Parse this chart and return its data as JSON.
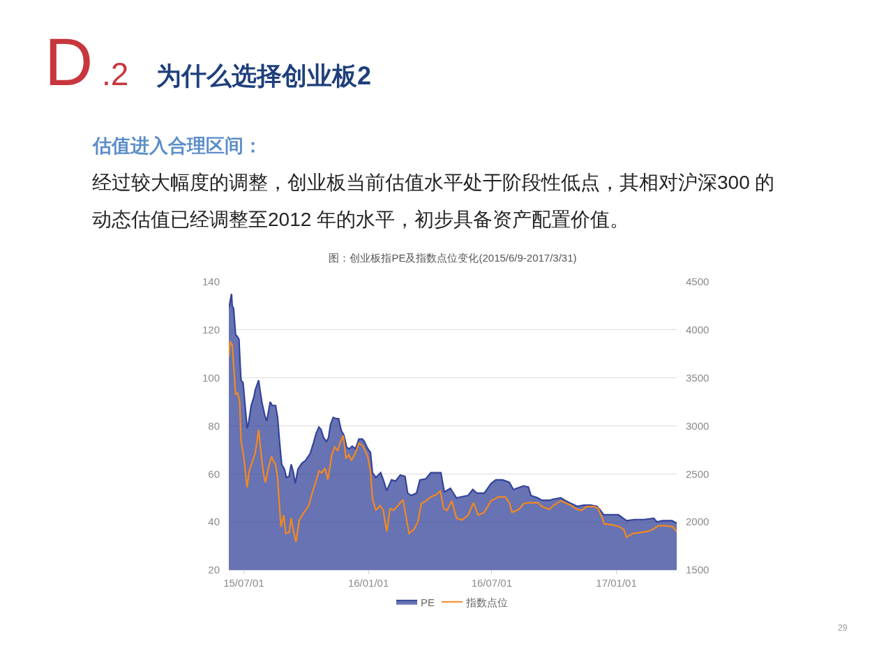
{
  "chart_data": {
    "type": "area",
    "title": "图：创业板指PE及指数点位变化(2015/6/9-2017/3/31)",
    "annotations": [
      "D",
      ".2",
      "为什么选择创业板2",
      "估值进入合理区间：",
      "经过较大幅度的调整，创业板当前估值水平处于阶段性低点，其相对沪深300 的",
      "动态估值已经调整至2012 年的水平，初步具备资产配置价值。",
      "29"
    ],
    "xlim": [
      "2015-06-09",
      "2017-03-31"
    ],
    "xticks": [
      {
        "value": "2015-07-01",
        "label": "15/07/01"
      },
      {
        "value": "2016-01-01",
        "label": "16/01/01"
      },
      {
        "value": "2016-07-01",
        "label": "16/07/01"
      },
      {
        "value": "2017-01-01",
        "label": "17/01/01"
      }
    ],
    "ylim": [
      20,
      140
    ],
    "yticks": [
      20,
      40,
      60,
      80,
      100,
      120,
      140
    ],
    "y2lim": [
      1500,
      4500
    ],
    "y2ticks": [
      1500,
      2000,
      2500,
      3000,
      3500,
      4000,
      4500
    ],
    "grid": "y",
    "legend": "bottom",
    "series": [
      {
        "name": "PE",
        "color": "#34449a",
        "x": [
          "2015-06-09",
          "2015-06-13",
          "2015-06-14",
          "2015-06-16",
          "2015-06-19",
          "2015-06-22",
          "2015-06-24",
          "2015-06-26",
          "2015-06-27",
          "2015-06-30",
          "2015-07-06",
          "2015-07-08",
          "2015-07-12",
          "2015-07-16",
          "2015-07-18",
          "2015-07-23",
          "2015-07-25",
          "2015-07-28",
          "2015-08-01",
          "2015-08-04",
          "2015-08-09",
          "2015-08-12",
          "2015-08-17",
          "2015-08-20",
          "2015-08-23",
          "2015-08-26",
          "2015-08-30",
          "2015-09-02",
          "2015-09-06",
          "2015-09-09",
          "2015-09-12",
          "2015-09-15",
          "2015-09-19",
          "2015-09-25",
          "2015-09-30",
          "2015-10-07",
          "2015-10-12",
          "2015-10-16",
          "2015-10-20",
          "2015-10-23",
          "2015-10-27",
          "2015-10-31",
          "2015-11-03",
          "2015-11-06",
          "2015-11-10",
          "2015-11-15",
          "2015-11-18",
          "2015-11-22",
          "2015-11-26",
          "2015-11-30",
          "2015-12-04",
          "2015-12-08",
          "2015-12-13",
          "2015-12-18",
          "2015-12-23",
          "2015-12-26",
          "2015-12-31",
          "2016-01-04",
          "2016-01-07",
          "2016-01-12",
          "2016-01-19",
          "2016-01-23",
          "2016-01-28",
          "2016-02-04",
          "2016-02-10",
          "2016-02-17",
          "2016-02-24",
          "2016-02-28",
          "2016-03-04",
          "2016-03-12",
          "2016-03-17",
          "2016-03-26",
          "2016-04-02",
          "2016-04-09",
          "2016-04-17",
          "2016-04-22",
          "2016-05-01",
          "2016-05-10",
          "2016-05-18",
          "2016-05-27",
          "2016-06-03",
          "2016-06-09",
          "2016-06-20",
          "2016-06-30",
          "2016-07-07",
          "2016-07-17",
          "2016-07-27",
          "2016-08-02",
          "2016-08-12",
          "2016-08-17",
          "2016-08-24",
          "2016-08-28",
          "2016-09-07",
          "2016-09-13",
          "2016-09-24",
          "2016-09-30",
          "2016-10-11",
          "2016-10-17",
          "2016-10-24",
          "2016-11-04",
          "2016-11-14",
          "2016-11-24",
          "2016-12-03",
          "2016-12-08",
          "2016-12-13",
          "2016-12-25",
          "2017-01-04",
          "2017-01-11",
          "2017-01-16",
          "2017-01-28",
          "2017-02-11",
          "2017-02-25",
          "2017-03-02",
          "2017-03-10",
          "2017-03-24",
          "2017-03-31"
        ],
        "values": [
          129,
          135,
          130,
          129,
          118,
          117,
          116,
          104,
          99,
          98,
          79,
          81,
          88.5,
          92,
          95,
          99,
          95,
          89.5,
          84.5,
          82,
          90,
          88.5,
          88.5,
          83.5,
          73,
          64,
          62,
          58.5,
          59,
          64,
          61,
          56,
          62,
          64.5,
          65.5,
          68.5,
          73,
          77,
          79.5,
          78.5,
          75,
          73.5,
          75,
          80.5,
          83.5,
          83,
          83,
          78,
          76,
          71,
          70.5,
          71.5,
          70.5,
          74.5,
          74.5,
          73.5,
          70.5,
          69,
          60.5,
          58.5,
          60.5,
          57.5,
          53,
          57.5,
          57,
          59.5,
          59,
          52,
          51,
          52,
          57.5,
          58,
          60.5,
          60.5,
          60.5,
          52.5,
          54,
          50,
          50.5,
          51,
          53.5,
          52,
          52,
          56,
          57.5,
          57.5,
          56.5,
          53.5,
          54.5,
          55,
          54.5,
          51,
          50,
          49,
          49,
          49.5,
          50,
          49,
          48,
          46.5,
          47,
          47,
          46.5,
          45,
          43,
          43,
          43,
          41.5,
          40.5,
          41,
          41,
          41.5,
          40,
          40.5,
          40.5,
          39.5
        ]
      },
      {
        "name": "指数点位",
        "type": "line",
        "axis": "y2",
        "color": "#f5891f",
        "x": [
          "2015-06-09",
          "2015-06-11",
          "2015-06-14",
          "2015-06-15",
          "2015-06-19",
          "2015-06-22",
          "2015-06-25",
          "2015-06-27",
          "2015-07-01",
          "2015-07-06",
          "2015-07-09",
          "2015-07-15",
          "2015-07-18",
          "2015-07-23",
          "2015-07-27",
          "2015-07-30",
          "2015-08-02",
          "2015-08-07",
          "2015-08-11",
          "2015-08-14",
          "2015-08-17",
          "2015-08-20",
          "2015-08-23",
          "2015-08-25",
          "2015-08-29",
          "2015-09-01",
          "2015-09-06",
          "2015-09-09",
          "2015-09-12",
          "2015-09-16",
          "2015-09-21",
          "2015-09-28",
          "2015-10-05",
          "2015-10-10",
          "2015-10-15",
          "2015-10-20",
          "2015-10-24",
          "2015-10-29",
          "2015-11-02",
          "2015-11-05",
          "2015-11-08",
          "2015-11-12",
          "2015-11-17",
          "2015-11-20",
          "2015-11-25",
          "2015-11-29",
          "2015-12-03",
          "2015-12-07",
          "2015-12-13",
          "2015-12-18",
          "2015-12-24",
          "2015-12-31",
          "2016-01-04",
          "2016-01-07",
          "2016-01-12",
          "2016-01-18",
          "2016-01-23",
          "2016-01-28",
          "2016-02-02",
          "2016-02-07",
          "2016-02-16",
          "2016-02-21",
          "2016-02-26",
          "2016-03-01",
          "2016-03-08",
          "2016-03-14",
          "2016-03-19",
          "2016-03-26",
          "2016-04-02",
          "2016-04-09",
          "2016-04-16",
          "2016-04-21",
          "2016-04-26",
          "2016-05-03",
          "2016-05-10",
          "2016-05-18",
          "2016-05-27",
          "2016-06-04",
          "2016-06-11",
          "2016-06-20",
          "2016-06-30",
          "2016-07-11",
          "2016-07-21",
          "2016-07-27",
          "2016-07-31",
          "2016-08-10",
          "2016-08-17",
          "2016-08-24",
          "2016-09-07",
          "2016-09-13",
          "2016-09-24",
          "2016-09-30",
          "2016-10-11",
          "2016-10-24",
          "2016-11-04",
          "2016-11-11",
          "2016-11-18",
          "2016-11-29",
          "2016-12-05",
          "2016-12-11",
          "2016-12-14",
          "2016-12-26",
          "2017-01-05",
          "2017-01-12",
          "2017-01-16",
          "2017-01-25",
          "2017-02-05",
          "2017-02-15",
          "2017-02-23",
          "2017-03-04",
          "2017-03-14",
          "2017-03-25",
          "2017-03-31"
        ],
        "values": [
          3720,
          3880,
          3840,
          3740,
          3330,
          3340,
          3250,
          2850,
          2680,
          2360,
          2530,
          2650,
          2720,
          2960,
          2680,
          2510,
          2410,
          2580,
          2680,
          2630,
          2600,
          2460,
          2140,
          1950,
          2070,
          1880,
          1890,
          2040,
          1920,
          1790,
          2020,
          2100,
          2170,
          2300,
          2410,
          2530,
          2510,
          2560,
          2440,
          2560,
          2700,
          2780,
          2740,
          2820,
          2900,
          2660,
          2700,
          2640,
          2720,
          2820,
          2790,
          2680,
          2530,
          2240,
          2120,
          2170,
          2120,
          1900,
          2140,
          2120,
          2190,
          2230,
          2040,
          1880,
          1920,
          2000,
          2190,
          2220,
          2260,
          2280,
          2320,
          2140,
          2120,
          2220,
          2040,
          2020,
          2070,
          2200,
          2070,
          2100,
          2220,
          2260,
          2260,
          2200,
          2100,
          2130,
          2190,
          2200,
          2200,
          2160,
          2130,
          2170,
          2220,
          2180,
          2130,
          2120,
          2160,
          2160,
          2140,
          2040,
          1980,
          1970,
          1950,
          1920,
          1840,
          1880,
          1890,
          1900,
          1920,
          1960,
          1960,
          1950,
          1900
        ]
      }
    ]
  }
}
